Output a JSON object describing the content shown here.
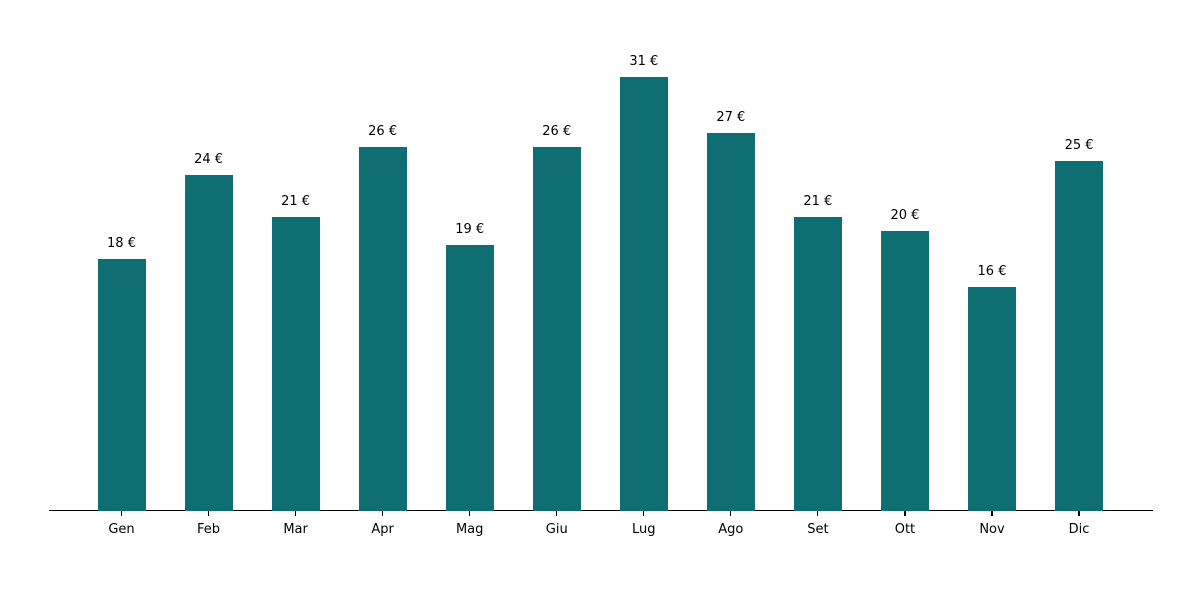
{
  "chart_data": {
    "type": "bar",
    "title": "",
    "xlabel": "",
    "ylabel": "",
    "categories": [
      "Gen",
      "Feb",
      "Mar",
      "Apr",
      "Mag",
      "Giu",
      "Lug",
      "Ago",
      "Set",
      "Ott",
      "Nov",
      "Dic"
    ],
    "values": [
      18,
      24,
      21,
      26,
      19,
      26,
      31,
      27,
      21,
      20,
      16,
      25
    ],
    "value_labels": [
      "18 €",
      "24 €",
      "21 €",
      "26 €",
      "19 €",
      "26 €",
      "31 €",
      "27 €",
      "21 €",
      "20 €",
      "16 €",
      "25 €"
    ],
    "unit": "€",
    "ylim": [
      0,
      32
    ],
    "grid": false,
    "legend": null,
    "y_axis_visible": false,
    "bar_color": "#0f6e71",
    "axis_color": "#000000",
    "label_color": "#000000",
    "background_color": "#ffffff"
  }
}
